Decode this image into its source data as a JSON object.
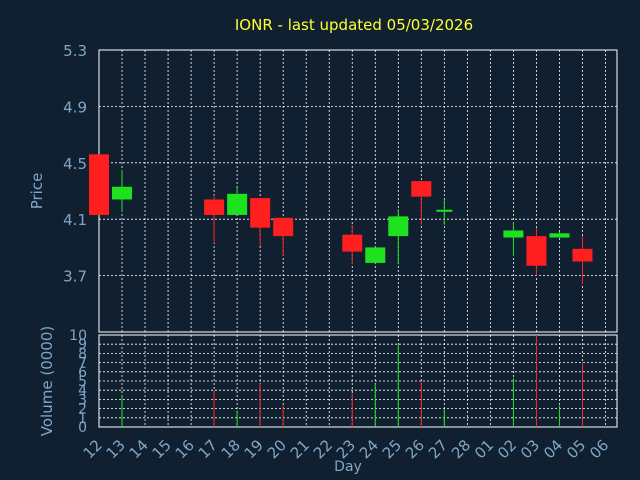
{
  "chart_data": {
    "type": "candlestick",
    "title": "IONR - last updated 05/03/2026",
    "ylabel_price": "Price",
    "ylabel_volume": "Volume (0000)",
    "xlabel": "Day",
    "price_ylim": [
      3.3,
      5.3
    ],
    "price_ticks": [
      "5.3",
      "4.9",
      "4.5",
      "4.1",
      "3.7"
    ],
    "price_tick_values": [
      5.3,
      4.9,
      4.5,
      4.1,
      3.7
    ],
    "volume_ylim": [
      0,
      10
    ],
    "volume_ticks": [
      "10",
      "9",
      "8",
      "7",
      "6",
      "5",
      "4",
      "3",
      "2",
      "1",
      "0"
    ],
    "volume_tick_values": [
      10,
      9,
      8,
      7,
      6,
      5,
      4,
      3,
      2,
      1,
      0
    ],
    "x_ticks": [
      "12",
      "13",
      "14",
      "15",
      "16",
      "17",
      "18",
      "19",
      "20",
      "21",
      "22",
      "23",
      "24",
      "25",
      "26",
      "27",
      "28",
      "01",
      "02",
      "03",
      "04",
      "05",
      "06"
    ],
    "grid": true,
    "candles": [
      {
        "day": "12",
        "open": 4.56,
        "high": 4.56,
        "low": 4.13,
        "close": 4.13,
        "volume": 0
      },
      {
        "day": "13",
        "open": 4.24,
        "high": 4.45,
        "low": 4.15,
        "close": 4.33,
        "volume": 3.5
      },
      {
        "day": "17",
        "open": 4.24,
        "high": 4.27,
        "low": 3.93,
        "close": 4.13,
        "volume": 4.0
      },
      {
        "day": "18",
        "open": 4.13,
        "high": 4.32,
        "low": 4.13,
        "close": 4.28,
        "volume": 1.8
      },
      {
        "day": "19",
        "open": 4.25,
        "high": 4.25,
        "low": 3.91,
        "close": 4.04,
        "volume": 4.7
      },
      {
        "day": "20",
        "open": 4.11,
        "high": 4.11,
        "low": 3.84,
        "close": 3.98,
        "volume": 2.3
      },
      {
        "day": "23",
        "open": 3.99,
        "high": 4.06,
        "low": 3.78,
        "close": 3.87,
        "volume": 3.6
      },
      {
        "day": "24",
        "open": 3.79,
        "high": 3.9,
        "low": 3.79,
        "close": 3.9,
        "volume": 4.7
      },
      {
        "day": "25",
        "open": 3.98,
        "high": 4.17,
        "low": 3.78,
        "close": 4.12,
        "volume": 9.0
      },
      {
        "day": "26",
        "open": 4.37,
        "high": 4.37,
        "low": 4.06,
        "close": 4.26,
        "volume": 5.0
      },
      {
        "day": "27",
        "open": 4.16,
        "high": 4.24,
        "low": 4.06,
        "close": 4.16,
        "volume": 2.0
      },
      {
        "day": "02",
        "open": 3.97,
        "high": 4.08,
        "low": 3.84,
        "close": 4.02,
        "volume": 5.3
      },
      {
        "day": "03",
        "open": 3.98,
        "high": 4.04,
        "low": 3.7,
        "close": 3.77,
        "volume": 10.0
      },
      {
        "day": "04",
        "open": 3.97,
        "high": 4.01,
        "low": 3.97,
        "close": 4.0,
        "volume": 2.3
      },
      {
        "day": "05",
        "open": 3.89,
        "high": 3.98,
        "low": 3.64,
        "close": 3.8,
        "volume": 7.0
      }
    ],
    "colors": {
      "background": "#102030",
      "plot_border": "#ffffff",
      "grid": "#ffffff",
      "title": "#ffff33",
      "axis_label": "#7fa7c7",
      "tick_label": "#7fa7c7",
      "up": "#1fe21f",
      "down": "#ff1f1f"
    }
  }
}
